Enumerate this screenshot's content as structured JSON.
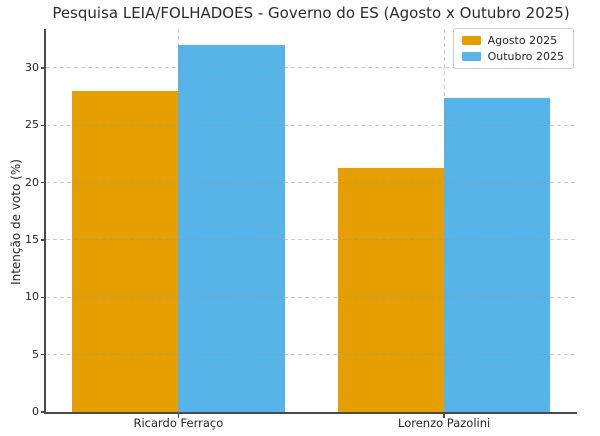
{
  "chart_data": {
    "type": "bar",
    "title": "Pesquisa LEIA/FOLHADOES - Governo do ES (Agosto x Outubro 2025)",
    "xlabel": "",
    "ylabel": "Intenção de voto (%)",
    "categories": [
      "Ricardo Ferraço",
      "Lorenzo Pazolini"
    ],
    "series": [
      {
        "name": "Agosto 2025",
        "color": "#E69F00",
        "values": [
          28,
          21.3
        ]
      },
      {
        "name": "Outubro 2025",
        "color": "#56B4E9",
        "values": [
          32,
          27.4
        ]
      }
    ],
    "yticks": [
      0,
      5,
      10,
      15,
      20,
      25,
      30
    ],
    "ylim": [
      0,
      33.4
    ],
    "xlim": [
      -0.5,
      1.5
    ],
    "bar_width": 0.4,
    "grid": true,
    "grid_style": "dashed",
    "legend_position": "upper right"
  },
  "colors": {
    "agosto": "#E69F00",
    "outubro": "#56B4E9",
    "grid": "#c9c9c9",
    "spine": "#4a4a4a",
    "text": "#262626",
    "legend_border": "#cccccc",
    "background": "#ffffff"
  }
}
